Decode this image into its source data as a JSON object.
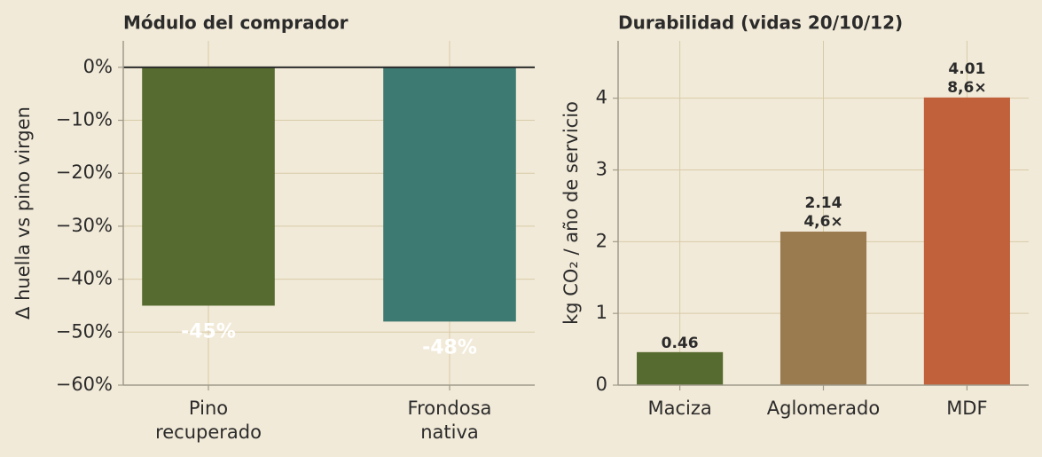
{
  "chart_data": [
    {
      "type": "bar",
      "title": "Módulo del comprador",
      "y_label": "Δ huella vs pino virgen",
      "categories": [
        "Pino\nrecuperado",
        "Frondosa\nnativa"
      ],
      "values": [
        -45,
        -48
      ],
      "value_labels": [
        "-45%",
        "-48%"
      ],
      "colors": [
        "#556b2f",
        "#3d7a72"
      ],
      "ylim": [
        -60,
        5
      ],
      "yticks": [
        {
          "value": 0,
          "label": "0%"
        },
        {
          "value": -10,
          "label": "−10%"
        },
        {
          "value": -20,
          "label": "−20%"
        },
        {
          "value": -30,
          "label": "−30%"
        },
        {
          "value": -40,
          "label": "−40%"
        },
        {
          "value": -50,
          "label": "−50%"
        },
        {
          "value": -60,
          "label": "−60%"
        }
      ],
      "grid": true
    },
    {
      "type": "bar",
      "title": "Durabilidad (vidas 20/10/12)",
      "y_label": "kg CO₂ / año de servicio",
      "categories": [
        "Maciza",
        "Aglomerado",
        "MDF"
      ],
      "values": [
        0.46,
        2.14,
        4.01
      ],
      "value_labels": [
        "0.46",
        "2.14",
        "4.01"
      ],
      "multipliers": [
        null,
        "4,6×",
        "8,6×"
      ],
      "colors": [
        "#556b2f",
        "#9a7b4f",
        "#c1613b"
      ],
      "ylim": [
        0,
        4.8
      ],
      "yticks": [
        0,
        1,
        2,
        3,
        4
      ],
      "grid": true
    }
  ]
}
